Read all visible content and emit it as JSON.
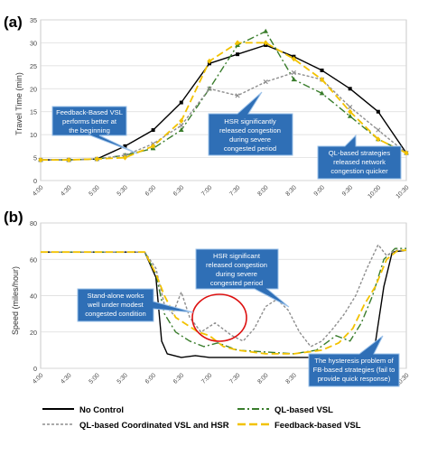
{
  "panel_a": {
    "label": "(a)",
    "chart_data": {
      "type": "line",
      "ylabel": "Travel Time (min)",
      "ylim": [
        0,
        35
      ],
      "yticks": [
        0,
        5,
        10,
        15,
        20,
        25,
        30,
        35
      ],
      "x_tick_labels": [
        "4:00",
        "4:30",
        "5:00",
        "5:30",
        "6:00",
        "6:30",
        "7:00",
        "7:30",
        "8:00",
        "8:30",
        "9:00",
        "9:30",
        "10:00",
        "10:30"
      ],
      "grid": true,
      "series": [
        {
          "name": "No Control",
          "color": "#000000",
          "marker": "square",
          "x": [
            0,
            1,
            2,
            3,
            4,
            5,
            6,
            7,
            8,
            9,
            10,
            11,
            12,
            13
          ],
          "y": [
            4.5,
            4.5,
            4.7,
            7.5,
            11,
            17,
            25.5,
            27.5,
            29.5,
            27,
            24,
            20,
            15,
            6
          ]
        },
        {
          "name": "QL-based VSL",
          "color": "#3a7d2c",
          "marker": "triangle",
          "x": [
            0,
            1,
            2,
            3,
            4,
            5,
            6,
            7,
            8,
            9,
            10,
            11,
            12,
            13
          ],
          "y": [
            4.5,
            4.5,
            4.7,
            5.5,
            7,
            11,
            20,
            29.5,
            32.5,
            22,
            19,
            14,
            9,
            6
          ]
        },
        {
          "name": "QL-based Coordinated VSL and HSR",
          "color": "#8e8e8e",
          "marker": "cross",
          "x": [
            0,
            1,
            2,
            3,
            4,
            5,
            6,
            7,
            8,
            9,
            10,
            11,
            12,
            13
          ],
          "y": [
            4.5,
            4.5,
            4.7,
            5.5,
            8,
            12,
            20,
            18.5,
            21.5,
            23.5,
            22,
            16,
            11,
            6
          ]
        },
        {
          "name": "Feedback-based VSL",
          "color": "#f2c200",
          "marker": "diamond",
          "x": [
            0,
            1,
            2,
            3,
            4,
            5,
            6,
            7,
            8,
            9,
            10,
            11,
            12,
            13
          ],
          "y": [
            4.5,
            4.5,
            4.7,
            5,
            7.5,
            13,
            26,
            30,
            30,
            26.5,
            22,
            15,
            9,
            6
          ]
        }
      ],
      "annotations": [
        "Feedback-Based VSL performs better at the beginning",
        "HSR significantly released congestion during severe congested period",
        "QL-based strategies released network congestion quicker"
      ]
    }
  },
  "panel_b": {
    "label": "(b)",
    "chart_data": {
      "type": "line",
      "ylabel": "Speed (miles/hour)",
      "ylim": [
        0,
        80
      ],
      "yticks": [
        0,
        20,
        40,
        60,
        80
      ],
      "x_tick_labels": [
        "4:00",
        "4:30",
        "5:00",
        "5:30",
        "6:00",
        "6:30",
        "7:00",
        "7:30",
        "8:00",
        "8:30",
        "9:00",
        "9:30",
        "10:00",
        "10:30"
      ],
      "grid": true,
      "series": [
        {
          "name": "No Control",
          "color": "#000000",
          "x": [
            0,
            1,
            2,
            3,
            3.7,
            4.1,
            4.3,
            4.5,
            5,
            5.5,
            6,
            7,
            8,
            9,
            10,
            10.6,
            11.2,
            11.6,
            11.9,
            12.2,
            12.5,
            13
          ],
          "y": [
            64,
            64,
            64,
            64,
            64,
            50,
            15,
            8,
            6,
            7,
            6,
            6,
            6,
            6,
            6,
            5,
            6,
            8,
            14,
            45,
            64,
            65
          ]
        },
        {
          "name": "QL-based VSL",
          "color": "#3a7d2c",
          "x": [
            0,
            1,
            2,
            3,
            3.7,
            4.1,
            4.4,
            4.8,
            5.3,
            5.8,
            6.3,
            7,
            8,
            9,
            9.8,
            10.5,
            11,
            11.4,
            11.8,
            12.2,
            12.6,
            13
          ],
          "y": [
            64,
            64,
            64,
            64,
            64,
            52,
            30,
            20,
            15,
            12,
            14,
            10,
            9,
            8,
            10,
            18,
            15,
            25,
            40,
            60,
            66,
            66
          ]
        },
        {
          "name": "QL-based Coordinated VSL and HSR",
          "color": "#8e8e8e",
          "x": [
            0,
            1,
            2,
            3,
            3.7,
            4.1,
            4.4,
            4.7,
            5,
            5.3,
            5.7,
            6.2,
            6.8,
            7.2,
            7.6,
            8,
            8.4,
            8.8,
            9.2,
            9.6,
            10,
            10.4,
            10.8,
            11.2,
            11.6,
            12,
            12.3,
            12.6,
            13
          ],
          "y": [
            64,
            64,
            64,
            64,
            64,
            55,
            35,
            30,
            42,
            28,
            20,
            25,
            18,
            15,
            22,
            34,
            38,
            32,
            20,
            12,
            15,
            22,
            30,
            40,
            55,
            68,
            62,
            65,
            65
          ]
        },
        {
          "name": "Feedback-based VSL",
          "color": "#f2c200",
          "x": [
            0,
            1,
            2,
            3,
            3.7,
            4.1,
            4.4,
            4.8,
            5.2,
            5.6,
            6,
            6.5,
            7,
            8,
            9,
            10,
            10.6,
            11.1,
            11.5,
            11.9,
            12.3,
            12.7,
            13
          ],
          "y": [
            64,
            64,
            64,
            64,
            64,
            52,
            40,
            28,
            24,
            20,
            18,
            12,
            10,
            8,
            8,
            10,
            14,
            22,
            35,
            45,
            60,
            65,
            65
          ]
        }
      ],
      "annotations": [
        "HSR significant released congestion during severe congested period",
        "Stand-alone works well under modest congested condition",
        "The hysteresis problem of FB-based strategies (fail to provide quick response)"
      ]
    }
  },
  "legend": {
    "no_control": "No Control",
    "ql_vsl": "QL-based VSL",
    "ql_coord": "QL-based Coordinated VSL and HSR",
    "fb_vsl": "Feedback-based VSL"
  }
}
